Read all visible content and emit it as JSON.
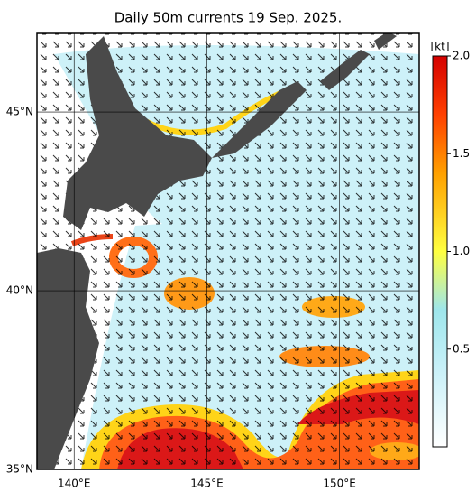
{
  "title": "Daily 50m currents 19 Sep. 2025.",
  "map": {
    "latlim": [
      35,
      47.2
    ],
    "latticks": [
      {
        "value": 35,
        "label": "35°N"
      },
      {
        "value": 40,
        "label": "40°N"
      },
      {
        "value": 45,
        "label": "45°N"
      }
    ],
    "lonlim": [
      138.6,
      153
    ],
    "lonticks": [
      {
        "value": 140,
        "label": "140°E"
      },
      {
        "value": 145,
        "label": "145°E"
      },
      {
        "value": 150,
        "label": "150°E"
      }
    ]
  },
  "colorbar": {
    "unit": "[kt]",
    "lim": [
      0,
      2
    ],
    "ticks": [
      0.5,
      {
        "value": 1,
        "label": "1.0"
      },
      1.5,
      {
        "value": 2,
        "label": "2.0"
      }
    ]
  }
}
